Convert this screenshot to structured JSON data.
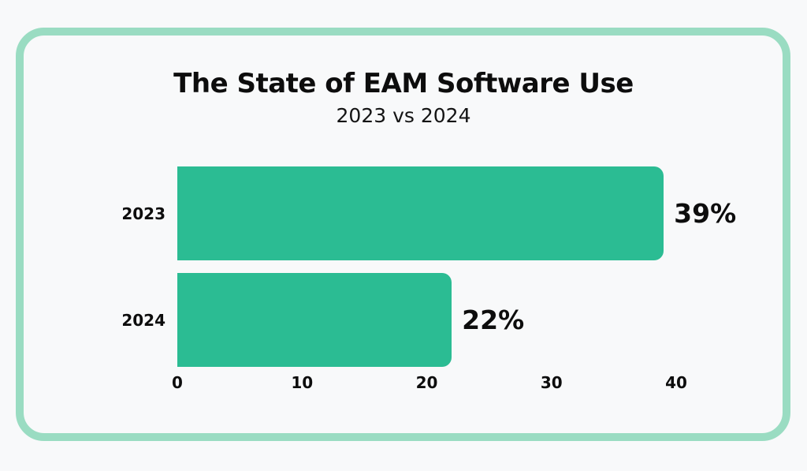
{
  "colors": {
    "background": "#f8f9fa",
    "frame_border": "#9adcc2",
    "bar": "#2bbc93",
    "text": "#0d0d0d"
  },
  "chart_data": {
    "type": "bar",
    "orientation": "horizontal",
    "title": "The State of EAM Software Use",
    "subtitle": "2023 vs 2024",
    "categories": [
      "2023",
      "2024"
    ],
    "values": [
      39,
      22
    ],
    "value_labels": [
      "39%",
      "22%"
    ],
    "x_ticks": [
      "0",
      "10",
      "20",
      "30",
      "40"
    ],
    "xlim": [
      0,
      40
    ],
    "xlabel": "",
    "ylabel": "",
    "grid": false,
    "legend": false,
    "unit": "percent"
  }
}
